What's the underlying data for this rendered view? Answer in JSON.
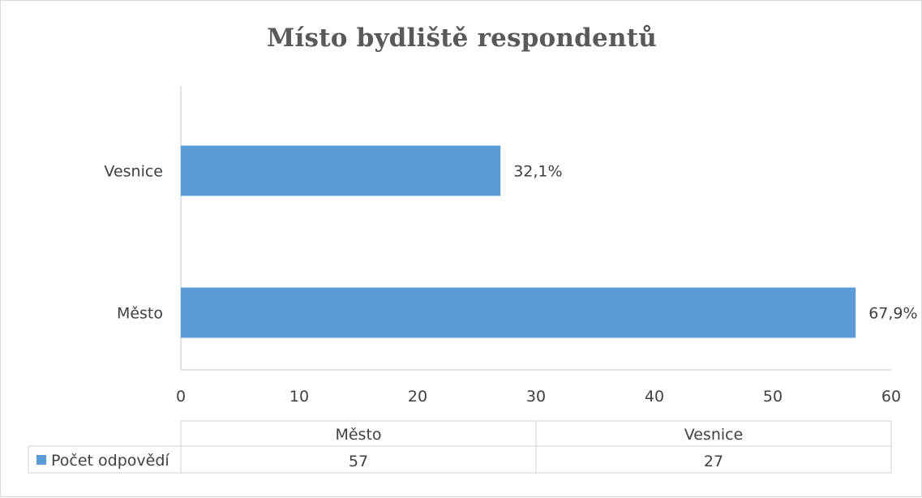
{
  "chart_data": {
    "type": "bar",
    "orientation": "horizontal",
    "title": "Místo bydliště respondentů",
    "categories": [
      "Město",
      "Vesnice"
    ],
    "series": [
      {
        "name": "Počet odpovědí",
        "values": [
          57,
          27
        ],
        "data_labels": [
          "67,9%",
          "32,1%"
        ],
        "color": "#5b9bd5"
      }
    ],
    "xlim": [
      0,
      60
    ],
    "x_ticks": [
      "0",
      "10",
      "20",
      "30",
      "40",
      "50",
      "60"
    ],
    "grid": false,
    "data_table": true,
    "legend_placement": "in data table"
  }
}
